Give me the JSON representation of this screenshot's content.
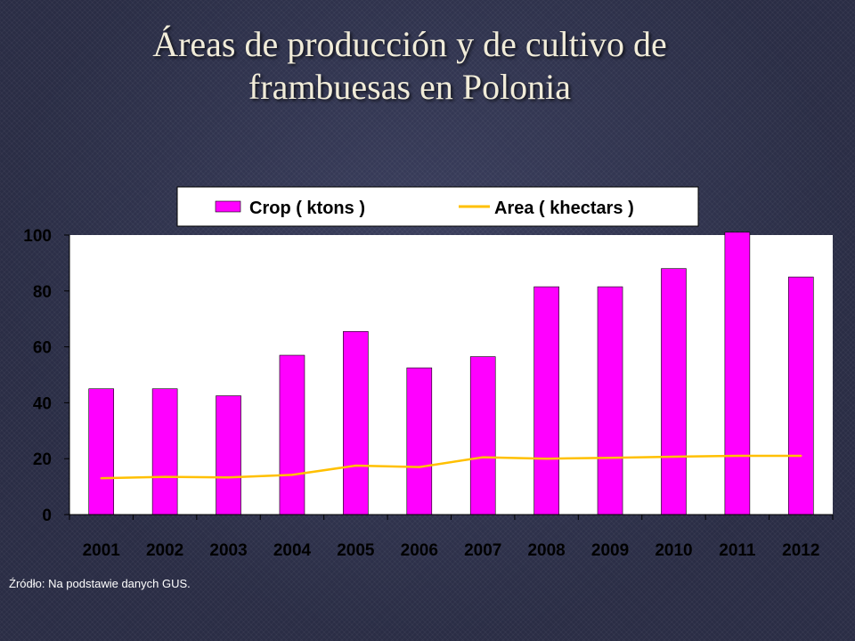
{
  "title": {
    "line1": "Áreas de producción y de cultivo de",
    "line2": "frambuesas en Polonia"
  },
  "source": "Źródło: Na podstawie danych GUS.",
  "colors": {
    "bar": "#ff00ff",
    "line": "#ffc000",
    "text": "#000000",
    "background": "#ffffff"
  },
  "chart_data": {
    "type": "bar",
    "categories": [
      "2001",
      "2002",
      "2003",
      "2004",
      "2005",
      "2006",
      "2007",
      "2008",
      "2009",
      "2010",
      "2011",
      "2012"
    ],
    "series": [
      {
        "name": "Crop ( ktons )",
        "type": "bar",
        "values": [
          45,
          45,
          42.5,
          57,
          65.5,
          52.5,
          56.5,
          81.5,
          81.5,
          88,
          101,
          85
        ]
      },
      {
        "name": "Area ( khectars )",
        "type": "line",
        "values": [
          13,
          13.5,
          13.3,
          14.2,
          17.5,
          17,
          20.5,
          20,
          20.3,
          20.7,
          21,
          21
        ]
      }
    ],
    "yticks": [
      0,
      20,
      40,
      60,
      80,
      100
    ],
    "ylim": [
      0,
      100
    ],
    "legend_position": "top",
    "grid": false
  }
}
